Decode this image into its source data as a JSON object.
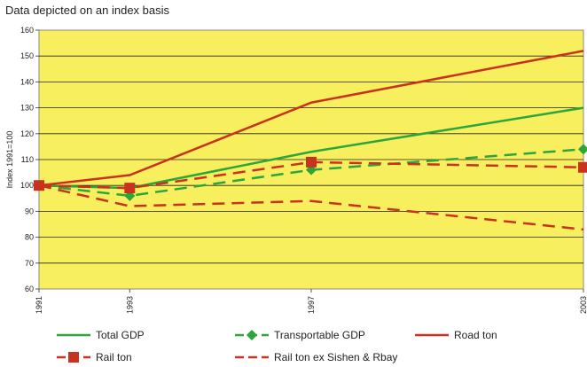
{
  "chart_data": {
    "type": "line",
    "title": "Data depicted on an index basis",
    "ylabel": "Index 1991=100",
    "xlabel": "",
    "x": [
      "1991",
      "1993",
      "1997",
      "2003"
    ],
    "ylim": [
      60,
      160
    ],
    "yticks": [
      60,
      70,
      80,
      90,
      100,
      110,
      120,
      130,
      140,
      150,
      160
    ],
    "grid": true,
    "plot_background": "#f7ef5e",
    "legend_position": "bottom",
    "series": [
      {
        "name": "Total GDP",
        "values": [
          100,
          99,
          113,
          130
        ],
        "color": "#2aa63a",
        "dash": "solid",
        "marker": "none"
      },
      {
        "name": "Transportable GDP",
        "values": [
          100,
          96,
          106,
          114
        ],
        "color": "#2aa63a",
        "dash": "dashed",
        "marker": "diamond"
      },
      {
        "name": "Road ton",
        "values": [
          100,
          104,
          132,
          152
        ],
        "color": "#c8321e",
        "dash": "solid",
        "marker": "none"
      },
      {
        "name": "Rail ton",
        "values": [
          100,
          99,
          109,
          107
        ],
        "color": "#c8321e",
        "dash": "dashed",
        "marker": "square"
      },
      {
        "name": "Rail ton ex Sishen & Rbay",
        "values": [
          100,
          92,
          94,
          83
        ],
        "color": "#c8321e",
        "dash": "dashed",
        "marker": "none"
      }
    ]
  }
}
